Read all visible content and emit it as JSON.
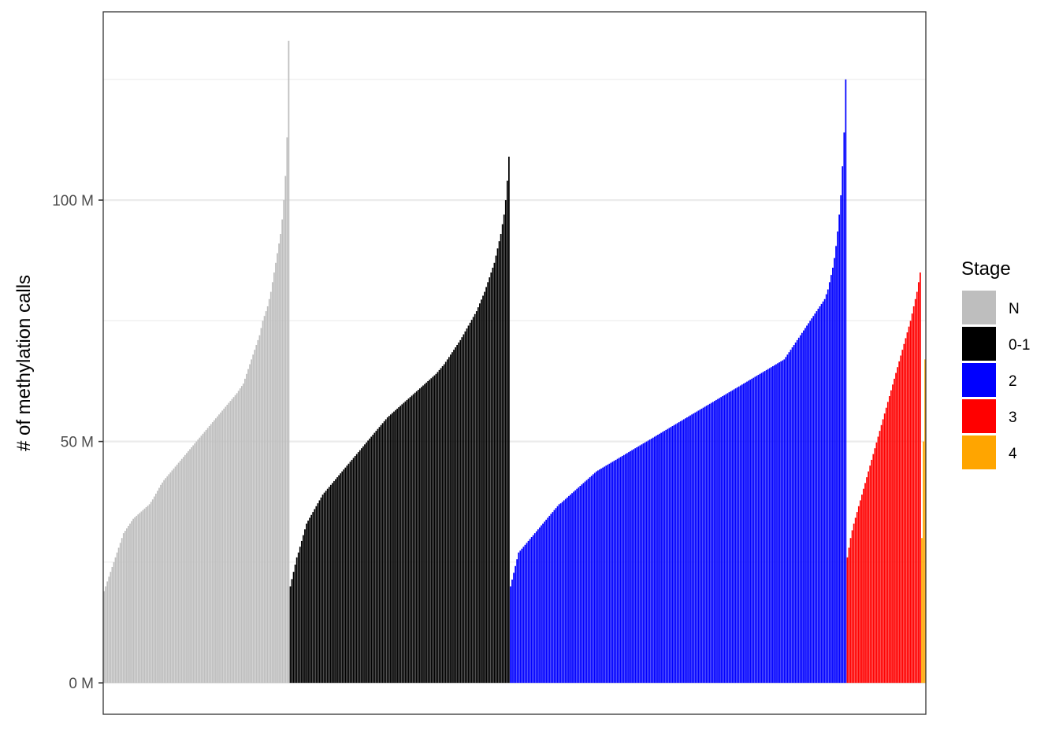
{
  "chart_data": {
    "type": "bar",
    "title": "",
    "xlabel": "",
    "ylabel": "# of methylation calls",
    "y_unit": "M",
    "ylim": [
      -6.5,
      139
    ],
    "y_ticks": [
      0,
      50,
      100
    ],
    "y_tick_labels": [
      "0 M",
      "50 M",
      "100 M"
    ],
    "grid": true,
    "x_axis_labels_shown": false,
    "legend": {
      "title": "Stage",
      "position": "right"
    },
    "series": [
      {
        "name": "N",
        "color": "#bebebe",
        "anchors": [
          [
            0,
            19
          ],
          [
            0.05,
            26
          ],
          [
            0.1,
            31
          ],
          [
            0.2,
            34
          ],
          [
            0.3,
            37
          ],
          [
            0.4,
            42
          ],
          [
            0.5,
            46
          ],
          [
            0.6,
            51
          ],
          [
            0.7,
            55
          ],
          [
            0.8,
            60
          ],
          [
            0.88,
            67
          ],
          [
            0.93,
            76
          ],
          [
            0.97,
            88
          ],
          [
            1,
            133
          ]
        ],
        "values": [
          19,
          20,
          21,
          22,
          23,
          24,
          25,
          26,
          27,
          28,
          29,
          30,
          31,
          31.5,
          32,
          32.5,
          33,
          33.5,
          34,
          34.3,
          34.6,
          34.9,
          35.2,
          35.5,
          35.8,
          36.1,
          36.4,
          36.7,
          37,
          37.5,
          38,
          38.6,
          39.2,
          39.8,
          40.4,
          41,
          41.5,
          42,
          42.4,
          42.8,
          43.2,
          43.6,
          44,
          44.4,
          44.8,
          45.2,
          45.6,
          46,
          46.4,
          46.8,
          47.2,
          47.6,
          48,
          48.4,
          48.8,
          49.2,
          49.6,
          50,
          50.4,
          50.8,
          51.2,
          51.6,
          52,
          52.4,
          52.8,
          53.2,
          53.6,
          54,
          54.4,
          54.8,
          55.2,
          55.6,
          56,
          56.4,
          56.8,
          57.2,
          57.6,
          58,
          58.4,
          58.8,
          59.2,
          59.6,
          60,
          60.5,
          61,
          61.5,
          62,
          63,
          64,
          65,
          66,
          67,
          68,
          69,
          70,
          71,
          72,
          73.5,
          75,
          76,
          77,
          78,
          79.5,
          81,
          83,
          85,
          87,
          89,
          91,
          93,
          96,
          100,
          105,
          113,
          133
        ]
      },
      {
        "name": "0-1",
        "color": "#000000",
        "anchors": [
          [
            0,
            20
          ],
          [
            0.03,
            27
          ],
          [
            0.08,
            34
          ],
          [
            0.15,
            39
          ],
          [
            0.25,
            44
          ],
          [
            0.35,
            49
          ],
          [
            0.45,
            54
          ],
          [
            0.55,
            58
          ],
          [
            0.65,
            62
          ],
          [
            0.75,
            66
          ],
          [
            0.85,
            72
          ],
          [
            0.92,
            78
          ],
          [
            0.97,
            87
          ],
          [
            1,
            109
          ]
        ],
        "values": [
          20,
          21.5,
          23,
          24.5,
          26,
          27,
          28.2,
          29.4,
          30.6,
          31.8,
          33,
          33.6,
          34.2,
          34.8,
          35.4,
          36,
          36.6,
          37.2,
          37.8,
          38.4,
          39,
          39.4,
          39.8,
          40.2,
          40.6,
          41,
          41.4,
          41.8,
          42.2,
          42.6,
          43,
          43.4,
          43.8,
          44.2,
          44.6,
          45,
          45.4,
          45.8,
          46.2,
          46.6,
          47,
          47.4,
          47.8,
          48.2,
          48.6,
          49,
          49.4,
          49.8,
          50.2,
          50.6,
          51,
          51.4,
          51.8,
          52.2,
          52.6,
          53,
          53.4,
          53.8,
          54.2,
          54.6,
          55,
          55.3,
          55.6,
          55.9,
          56.2,
          56.5,
          56.8,
          57.1,
          57.4,
          57.7,
          58,
          58.3,
          58.6,
          58.9,
          59.2,
          59.5,
          59.8,
          60.1,
          60.4,
          60.7,
          61,
          61.3,
          61.6,
          61.9,
          62.2,
          62.5,
          62.8,
          63.1,
          63.4,
          63.7,
          64,
          64.4,
          64.8,
          65.2,
          65.6,
          66,
          66.5,
          67,
          67.5,
          68,
          68.5,
          69,
          69.5,
          70,
          70.5,
          71,
          71.6,
          72.2,
          72.8,
          73.4,
          74,
          74.6,
          75.2,
          75.8,
          76.4,
          77,
          77.8,
          78.6,
          79.4,
          80.2,
          81,
          82,
          83,
          84,
          85,
          86,
          87,
          88.5,
          90,
          91.5,
          93,
          95,
          97,
          100,
          104,
          109
        ]
      },
      {
        "name": "2",
        "color": "#0000ff",
        "anchors": [
          [
            0,
            20
          ],
          [
            0.02,
            27
          ],
          [
            0.05,
            31
          ],
          [
            0.1,
            37
          ],
          [
            0.2,
            44
          ],
          [
            0.3,
            48
          ],
          [
            0.4,
            52
          ],
          [
            0.5,
            55
          ],
          [
            0.6,
            58
          ],
          [
            0.7,
            62
          ],
          [
            0.8,
            66
          ],
          [
            0.87,
            72
          ],
          [
            0.93,
            79
          ],
          [
            0.97,
            90
          ],
          [
            1,
            125
          ]
        ],
        "values": [
          20,
          21.4,
          22.8,
          24.2,
          25.6,
          27,
          27.4,
          27.8,
          28.2,
          28.6,
          29,
          29.4,
          29.8,
          30.2,
          30.6,
          31,
          31.4,
          31.8,
          32.2,
          32.6,
          33,
          33.4,
          33.8,
          34.2,
          34.6,
          35,
          35.4,
          35.8,
          36.2,
          36.6,
          37,
          37.2,
          37.5,
          37.8,
          38.1,
          38.4,
          38.7,
          39,
          39.3,
          39.6,
          39.9,
          40.2,
          40.5,
          40.8,
          41.1,
          41.4,
          41.7,
          42,
          42.3,
          42.6,
          42.9,
          43.2,
          43.5,
          43.8,
          44,
          44.2,
          44.4,
          44.6,
          44.8,
          45,
          45.2,
          45.4,
          45.6,
          45.8,
          46,
          46.2,
          46.4,
          46.6,
          46.8,
          47,
          47.2,
          47.4,
          47.6,
          47.8,
          48,
          48.2,
          48.4,
          48.6,
          48.8,
          49,
          49.2,
          49.4,
          49.6,
          49.8,
          50,
          50.2,
          50.4,
          50.6,
          50.8,
          51,
          51.2,
          51.4,
          51.6,
          51.8,
          52,
          52.2,
          52.4,
          52.6,
          52.8,
          53,
          53.2,
          53.4,
          53.6,
          53.8,
          54,
          54.2,
          54.4,
          54.6,
          54.8,
          55,
          55.2,
          55.4,
          55.6,
          55.8,
          56,
          56.2,
          56.4,
          56.6,
          56.8,
          57,
          57.2,
          57.4,
          57.6,
          57.8,
          58,
          58.2,
          58.4,
          58.6,
          58.8,
          59,
          59.2,
          59.4,
          59.6,
          59.8,
          60,
          60.2,
          60.4,
          60.6,
          60.8,
          61,
          61.2,
          61.4,
          61.6,
          61.8,
          62,
          62.2,
          62.4,
          62.6,
          62.8,
          63,
          63.2,
          63.4,
          63.6,
          63.8,
          64,
          64.2,
          64.4,
          64.6,
          64.8,
          65,
          65.2,
          65.4,
          65.6,
          65.8,
          66,
          66.2,
          66.4,
          66.6,
          66.8,
          67,
          67.5,
          68,
          68.5,
          69,
          69.5,
          70,
          70.5,
          71,
          71.5,
          72,
          72.5,
          73,
          73.5,
          74,
          74.5,
          75,
          75.5,
          76,
          76.5,
          77,
          77.5,
          78,
          78.5,
          79,
          79.5,
          80.5,
          81.5,
          83,
          84.5,
          86,
          88,
          90.5,
          93.5,
          97,
          101,
          107,
          114,
          125
        ]
      },
      {
        "name": "3",
        "color": "#ff0000",
        "anchors": [
          [
            0,
            26
          ],
          [
            0.05,
            30
          ],
          [
            0.1,
            34
          ],
          [
            0.2,
            40
          ],
          [
            0.3,
            46
          ],
          [
            0.4,
            52
          ],
          [
            0.5,
            57
          ],
          [
            0.6,
            62
          ],
          [
            0.7,
            67
          ],
          [
            0.8,
            72
          ],
          [
            0.9,
            77
          ],
          [
            0.95,
            81
          ],
          [
            1,
            85
          ]
        ],
        "values": [
          26,
          28,
          30,
          31.6,
          33,
          34.2,
          35.4,
          36.6,
          37.8,
          39,
          40.2,
          41.4,
          42.6,
          43.8,
          45,
          46.2,
          47.4,
          48.6,
          49.8,
          51,
          52.2,
          53.4,
          54.6,
          55.8,
          57,
          58.2,
          59.4,
          60.6,
          61.8,
          63,
          64.2,
          65.4,
          66.6,
          67.8,
          69,
          70.2,
          71.4,
          72.6,
          73.8,
          75,
          76.5,
          78,
          79.5,
          81,
          83,
          85
        ]
      },
      {
        "name": "4",
        "color": "#ffa500",
        "anchors": [
          [
            0,
            30
          ],
          [
            0.5,
            50
          ],
          [
            1,
            67
          ]
        ],
        "values": [
          30,
          50,
          67
        ]
      }
    ]
  }
}
